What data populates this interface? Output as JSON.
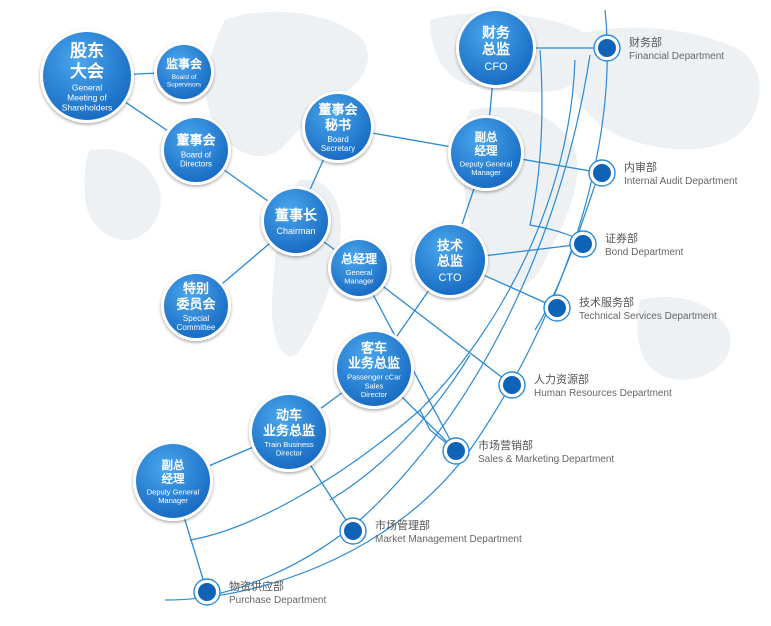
{
  "colors": {
    "line": "#2a8ad6",
    "node_fill": "#1f7fd2",
    "node_fill_light": "#4aa6ec",
    "node_ring": "#ffffff",
    "dept_fill": "#0f63b6",
    "map": "#eef1f4",
    "text_gray": "#555555"
  },
  "nodes": [
    {
      "id": "shareholders",
      "zh": [
        "股东",
        "大会"
      ],
      "en": [
        "General",
        "Meeting of",
        "Shareholders"
      ]
    },
    {
      "id": "supervisors",
      "zh": [
        "监事会"
      ],
      "en": [
        "Board of",
        "Supervisors"
      ]
    },
    {
      "id": "directors",
      "zh": [
        "董事会"
      ],
      "en": [
        "Board of",
        "Directors"
      ]
    },
    {
      "id": "secretary",
      "zh": [
        "董事会",
        "秘书"
      ],
      "en": [
        "Board",
        "Secretary"
      ]
    },
    {
      "id": "chairman",
      "zh": [
        "董事长"
      ],
      "en": [
        "Chairman"
      ]
    },
    {
      "id": "committee",
      "zh": [
        "特别",
        "委员会"
      ],
      "en": [
        "Special",
        "Committee"
      ]
    },
    {
      "id": "gm",
      "zh": [
        "总经理"
      ],
      "en": [
        "General",
        "Manager"
      ]
    },
    {
      "id": "cfo",
      "zh": [
        "财务",
        "总监"
      ],
      "en": [
        "CFO"
      ]
    },
    {
      "id": "dgm1",
      "zh": [
        "副总",
        "经理"
      ],
      "en": [
        "Deputy General",
        "Manager"
      ]
    },
    {
      "id": "cto",
      "zh": [
        "技术",
        "总监"
      ],
      "en": [
        "CTO"
      ]
    },
    {
      "id": "passenger",
      "zh": [
        "客车",
        "业务总监"
      ],
      "en": [
        "Passenger cCar",
        "Sales",
        "Director"
      ]
    },
    {
      "id": "train",
      "zh": [
        "动车",
        "业务总监"
      ],
      "en": [
        "Train Business",
        "Director"
      ]
    },
    {
      "id": "dgm2",
      "zh": [
        "副总",
        "经理"
      ],
      "en": [
        "Deputy General",
        "Manager"
      ]
    }
  ],
  "departments": [
    {
      "id": "financial",
      "zh": "财务部",
      "en": "Financial Department"
    },
    {
      "id": "audit",
      "zh": "内审部",
      "en": "Internal Audit Department"
    },
    {
      "id": "bond",
      "zh": "证券部",
      "en": "Bond Department"
    },
    {
      "id": "techsvc",
      "zh": "技术服务部",
      "en": "Technical Services Department"
    },
    {
      "id": "hr",
      "zh": "人力资源部",
      "en": "Human Resources Department"
    },
    {
      "id": "sales",
      "zh": "市场营销部",
      "en": "Sales & Marketing Department"
    },
    {
      "id": "market",
      "zh": "市场管理部",
      "en": "Market Management Department"
    },
    {
      "id": "purchase",
      "zh": "物资供应部",
      "en": "Purchase Department"
    }
  ],
  "connections": [
    [
      "shareholders",
      "directors"
    ],
    [
      "supervisors",
      "shareholders"
    ],
    [
      "directors",
      "chairman"
    ],
    [
      "secretary",
      "chairman"
    ],
    [
      "secretary",
      "dgm1"
    ],
    [
      "chairman",
      "committee"
    ],
    [
      "chairman",
      "gm"
    ],
    [
      "gm",
      "hr"
    ],
    [
      "gm",
      "sales"
    ],
    [
      "cfo",
      "financial"
    ],
    [
      "cfo",
      "dgm1"
    ],
    [
      "dgm1",
      "audit"
    ],
    [
      "dgm1",
      "cto"
    ],
    [
      "cto",
      "bond"
    ],
    [
      "cto",
      "techsvc"
    ],
    [
      "cto",
      "passenger"
    ],
    [
      "passenger",
      "sales"
    ],
    [
      "passenger",
      "train"
    ],
    [
      "train",
      "market"
    ],
    [
      "train",
      "dgm2"
    ],
    [
      "dgm2",
      "purchase"
    ]
  ]
}
